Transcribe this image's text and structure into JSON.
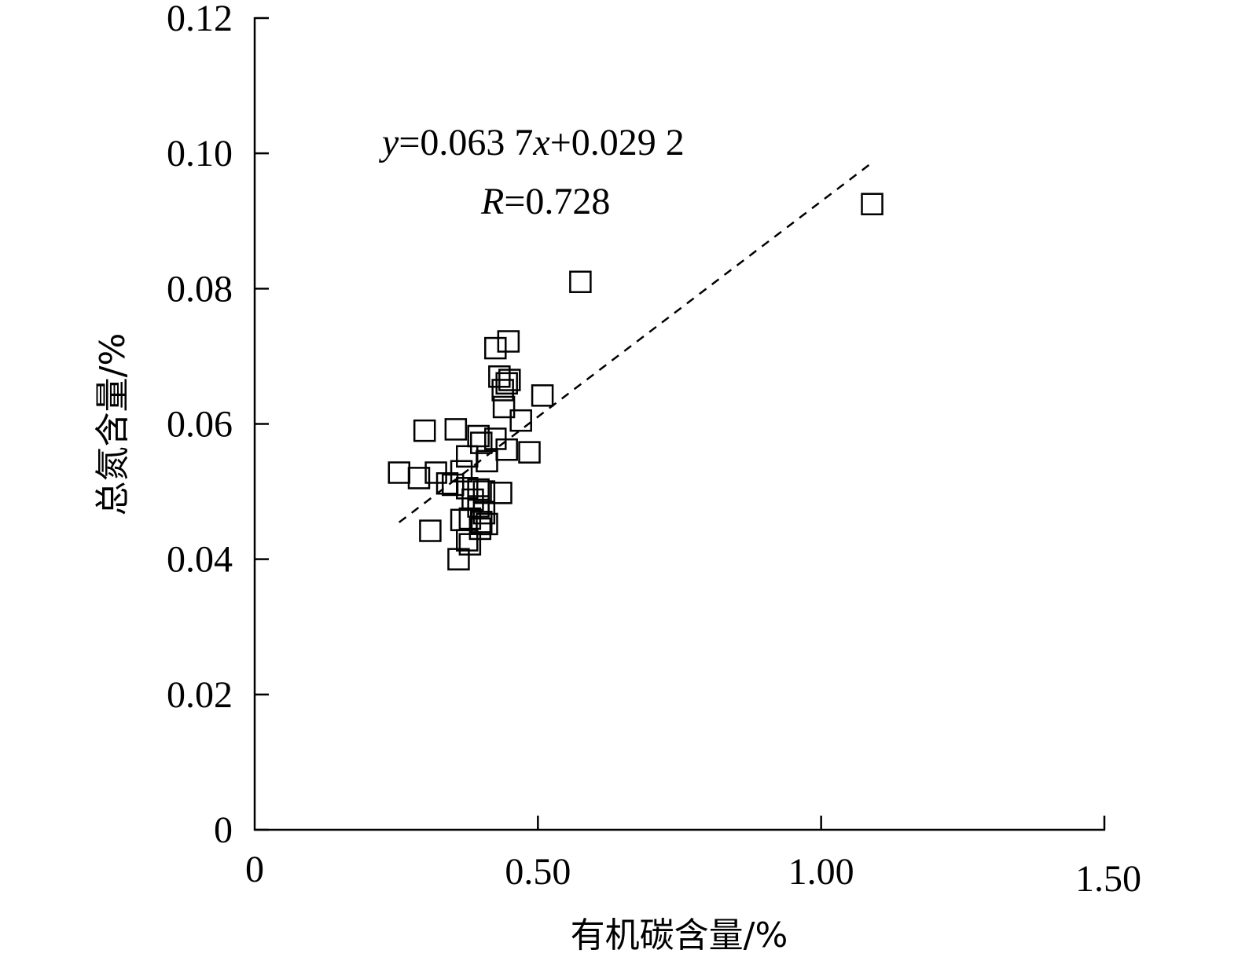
{
  "chart_data": {
    "type": "scatter",
    "xlabel": "有机碳含量/%",
    "ylabel": "总氮含量/%",
    "xlim": [
      0,
      1.5
    ],
    "ylim": [
      0,
      0.12
    ],
    "x_ticks": [
      0,
      0.5,
      1.0,
      1.5
    ],
    "x_tick_labels": [
      "0",
      "0.50",
      "1.00",
      "1.50"
    ],
    "y_ticks": [
      0,
      0.02,
      0.04,
      0.06,
      0.08,
      0.1,
      0.12
    ],
    "y_tick_labels": [
      "0",
      "0.02",
      "0.04",
      "0.06",
      "0.08",
      "0.10",
      "0.12"
    ],
    "grid": false,
    "marker": "open-square",
    "marker_color": "#000000",
    "points": [
      [
        1.09,
        0.0925
      ],
      [
        0.575,
        0.081
      ],
      [
        0.448,
        0.0722
      ],
      [
        0.425,
        0.0712
      ],
      [
        0.432,
        0.067
      ],
      [
        0.45,
        0.0665
      ],
      [
        0.445,
        0.066
      ],
      [
        0.438,
        0.065
      ],
      [
        0.508,
        0.0642
      ],
      [
        0.44,
        0.0625
      ],
      [
        0.47,
        0.0605
      ],
      [
        0.3,
        0.059
      ],
      [
        0.355,
        0.0592
      ],
      [
        0.395,
        0.0582
      ],
      [
        0.425,
        0.0578
      ],
      [
        0.4,
        0.0572
      ],
      [
        0.445,
        0.0562
      ],
      [
        0.485,
        0.0558
      ],
      [
        0.375,
        0.0552
      ],
      [
        0.41,
        0.0545
      ],
      [
        0.255,
        0.0528
      ],
      [
        0.32,
        0.0528
      ],
      [
        0.365,
        0.053
      ],
      [
        0.29,
        0.052
      ],
      [
        0.34,
        0.0512
      ],
      [
        0.35,
        0.051
      ],
      [
        0.375,
        0.0505
      ],
      [
        0.395,
        0.0503
      ],
      [
        0.405,
        0.05
      ],
      [
        0.435,
        0.0498
      ],
      [
        0.385,
        0.0488
      ],
      [
        0.395,
        0.0478
      ],
      [
        0.405,
        0.0468
      ],
      [
        0.38,
        0.046
      ],
      [
        0.365,
        0.0458
      ],
      [
        0.4,
        0.0455
      ],
      [
        0.41,
        0.0452
      ],
      [
        0.398,
        0.0445
      ],
      [
        0.31,
        0.0442
      ],
      [
        0.375,
        0.0428
      ],
      [
        0.38,
        0.0422
      ],
      [
        0.36,
        0.04
      ]
    ],
    "trendline": {
      "style": "dashed",
      "slope": 0.0637,
      "intercept": 0.0292,
      "x_range": [
        0.255,
        1.09
      ]
    },
    "annotations": {
      "equation": {
        "italic_y": "y",
        "part1": "=0.063 7",
        "italic_x": "x",
        "part2": "+0.029 2"
      },
      "r": {
        "italic_r": "R",
        "value": "=0.728"
      }
    }
  }
}
